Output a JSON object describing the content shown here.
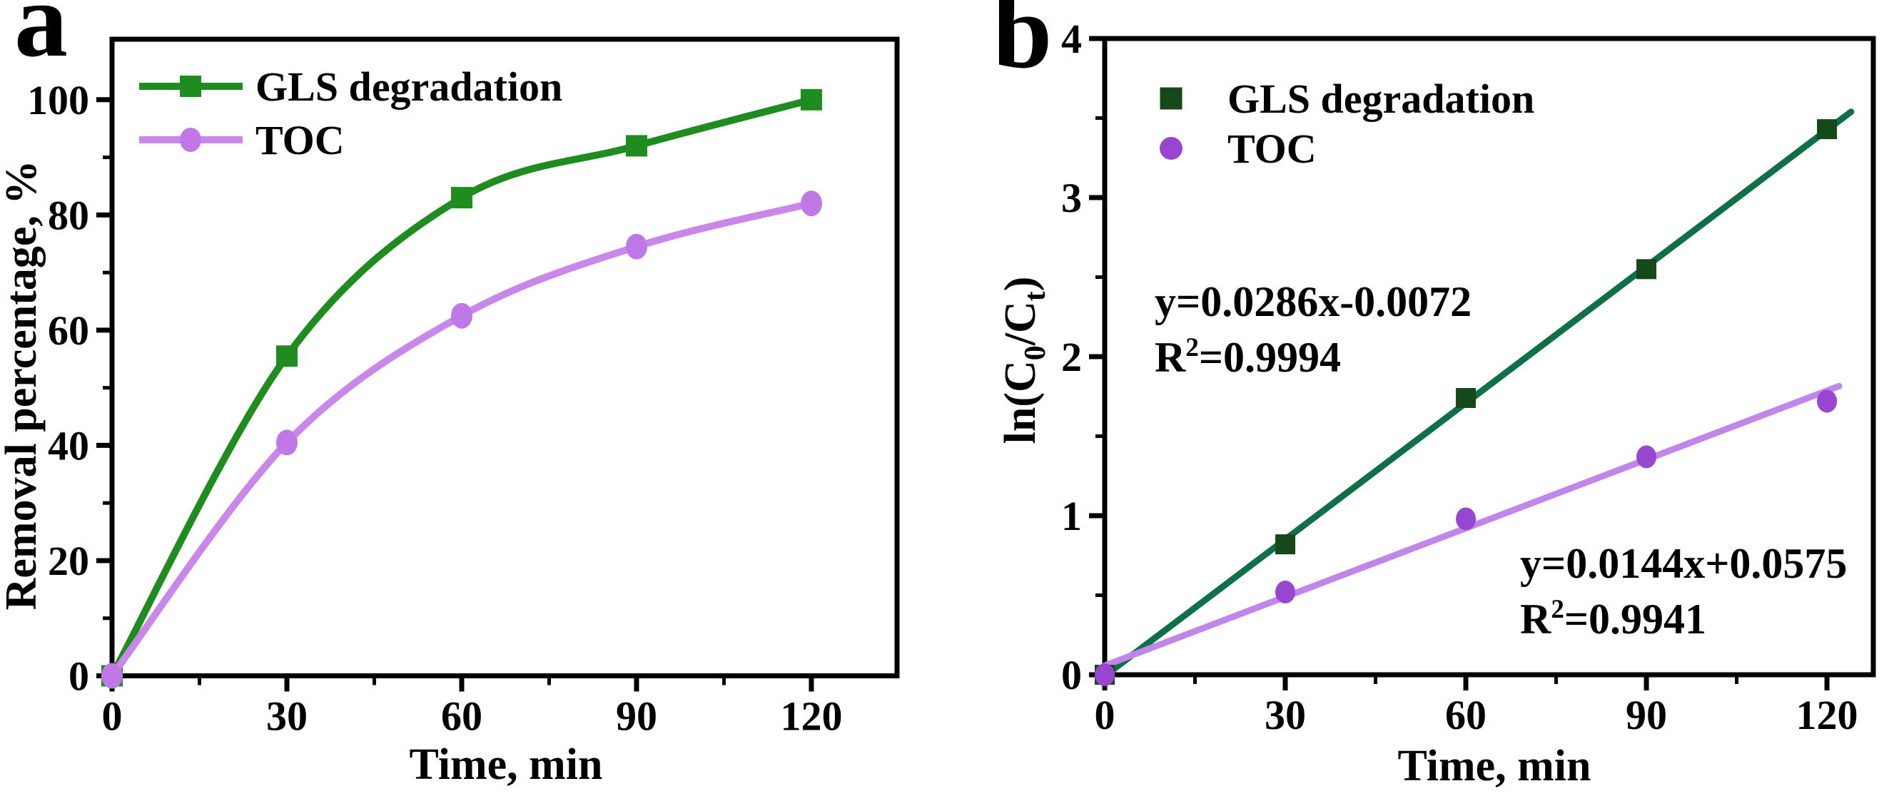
{
  "figure": {
    "background": "#ffffff",
    "panels": [
      {
        "letter": "a"
      },
      {
        "letter": "b"
      }
    ]
  },
  "chart_data": [
    {
      "type": "line",
      "panel": "a",
      "title": "",
      "xlabel": "Time, min",
      "ylabel": "Removal percentage, %",
      "x": [
        0,
        30,
        60,
        90,
        120
      ],
      "series": [
        {
          "name": "GLS degradation",
          "marker": "square",
          "color": "#1e8c1e",
          "marker_color": "#1e8c1e",
          "values": [
            0,
            55.5,
            83,
            92,
            100
          ]
        },
        {
          "name": "TOC",
          "marker": "circle",
          "color": "#c988e9",
          "marker_color": "#c078e6",
          "values": [
            0,
            40.5,
            62.5,
            74.5,
            82
          ]
        }
      ],
      "xlim": [
        0,
        134.7
      ],
      "ylim": [
        0,
        110.5
      ],
      "xticks": [
        0,
        30,
        60,
        90,
        120
      ],
      "yticks": [
        0,
        20,
        40,
        60,
        80,
        100
      ],
      "x_minor_step": 15,
      "y_minor_step": 10,
      "grid": false,
      "legend_position": "top-left"
    },
    {
      "type": "scatter",
      "panel": "b",
      "title": "",
      "xlabel": "Time, min",
      "ylabel": "ln(C0/Ct)",
      "ylabel_parts": [
        {
          "t": "ln(C"
        },
        {
          "t": "0",
          "sub": true
        },
        {
          "t": "/C"
        },
        {
          "t": "t",
          "sub": true
        },
        {
          "t": ")"
        }
      ],
      "x": [
        0,
        30,
        60,
        90,
        120
      ],
      "series": [
        {
          "name": "GLS degradation",
          "marker": "square",
          "marker_color": "#15491a",
          "line_color": "#0f7048",
          "values": [
            0,
            0.82,
            1.74,
            2.55,
            3.43
          ],
          "fit": {
            "slope": 0.0286,
            "intercept": -0.0072,
            "equation": "y=0.0286x-0.0072",
            "r2": "0.9994",
            "x_range": [
              0,
              124
            ]
          },
          "annotation_color": "#1a571a"
        },
        {
          "name": "TOC",
          "marker": "circle",
          "marker_color": "#9846d2",
          "line_color": "#c186ea",
          "values": [
            0,
            0.52,
            0.98,
            1.37,
            1.72
          ],
          "fit": {
            "slope": 0.0144,
            "intercept": 0.0575,
            "equation": "y=0.0144x+0.0575",
            "r2": "0.9941",
            "x_range": [
              0,
              122
            ]
          },
          "annotation_color": "#b17be6"
        }
      ],
      "xlim": [
        0,
        127.7
      ],
      "ylim": [
        0,
        4
      ],
      "xticks": [
        0,
        30,
        60,
        90,
        120
      ],
      "yticks": [
        0,
        1,
        2,
        3,
        4
      ],
      "x_minor_step": 15,
      "y_minor_step": 0.5,
      "grid": false,
      "legend_position": "top-left"
    }
  ]
}
